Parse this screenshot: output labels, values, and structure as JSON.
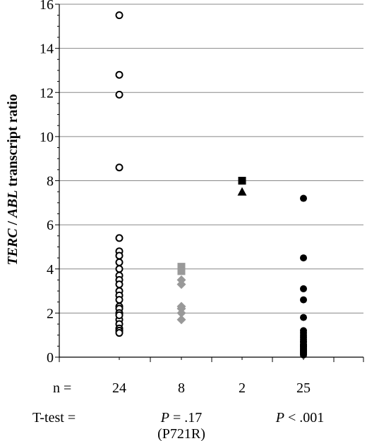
{
  "chart_data": {
    "type": "scatter",
    "ylabel_italic_1": "TERC",
    "ylabel_sep": " / ",
    "ylabel_italic_2": "ABL",
    "ylabel_rest": " transcript ratio",
    "ylim": [
      0,
      16
    ],
    "y_ticks": [
      "0",
      "2",
      "4",
      "6",
      "8",
      "10",
      "12",
      "14",
      "16"
    ],
    "grid": true,
    "groups": [
      {
        "n": "24",
        "marker": "open-circle",
        "color": "#000000",
        "values": [
          15.5,
          12.8,
          11.9,
          8.6,
          5.4,
          4.8,
          4.6,
          4.3,
          4.0,
          3.7,
          3.5,
          3.3,
          3.0,
          2.8,
          2.6,
          2.3,
          2.2,
          2.0,
          1.7,
          1.5,
          1.3,
          1.2,
          1.1,
          1.9
        ]
      },
      {
        "n": "8",
        "marker": "square-diamond",
        "color": "#999999",
        "squares": [
          4.1,
          3.9
        ],
        "values": [
          3.5,
          3.3,
          2.3,
          2.2,
          2.0,
          1.7
        ]
      },
      {
        "n": "2",
        "marker": "square-triangle",
        "color": "#000000",
        "squares": [
          8.0
        ],
        "triangles": [
          7.5
        ]
      },
      {
        "n": "25",
        "marker": "filled-circle",
        "color": "#000000",
        "values": [
          7.2,
          4.5,
          3.1,
          2.6,
          1.8,
          1.2,
          1.1,
          1.0,
          0.9,
          0.8,
          0.7,
          0.6,
          0.55,
          0.5,
          0.45,
          0.4,
          0.35,
          0.3,
          0.25,
          0.2,
          0.15,
          0.1,
          0.3,
          0.5,
          0.7
        ]
      }
    ]
  },
  "footer": {
    "n_label": "n =",
    "ttest_label": "T-test =",
    "p1_italic": "P",
    "p1_rest": " = .17",
    "p1_note": "(P721R)",
    "p2_italic": "P",
    "p2_rest": " < .001"
  }
}
